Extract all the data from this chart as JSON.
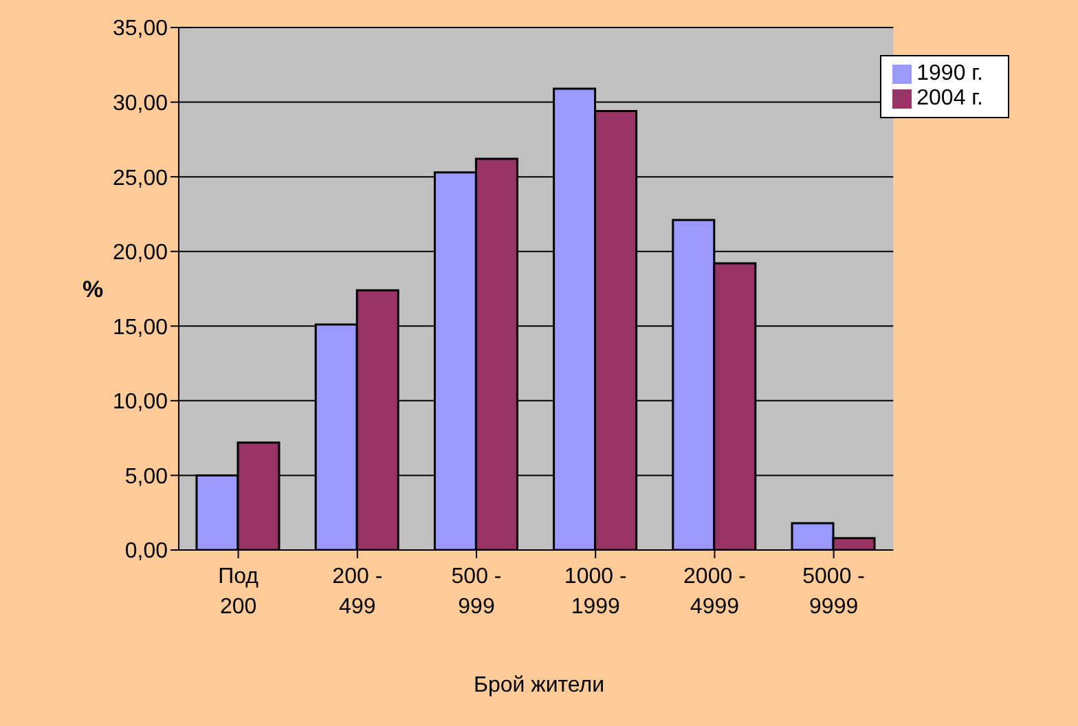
{
  "chart_data": {
    "type": "bar",
    "xlabel": "Брой жители",
    "ylabel": "%",
    "categories": [
      "Под 200",
      "200 - 499",
      "500 - 999",
      "1000 - 1999",
      "2000 - 4999",
      "5000 - 9999"
    ],
    "series": [
      {
        "name": "1990 г.",
        "color": "#9999ff",
        "values": [
          5.0,
          15.1,
          25.3,
          30.9,
          22.1,
          1.8
        ]
      },
      {
        "name": "2004 г.",
        "color": "#993366",
        "values": [
          7.2,
          17.4,
          26.2,
          29.4,
          19.2,
          0.8
        ]
      }
    ],
    "ylim": [
      0,
      35
    ],
    "yticks": [
      {
        "value": 0,
        "label": "0,00"
      },
      {
        "value": 5,
        "label": "5,00"
      },
      {
        "value": 10,
        "label": "10,00"
      },
      {
        "value": 15,
        "label": "15,00"
      },
      {
        "value": 20,
        "label": "20,00"
      },
      {
        "value": 25,
        "label": "25,00"
      },
      {
        "value": 30,
        "label": "30,00"
      },
      {
        "value": 35,
        "label": "35,00"
      }
    ],
    "grid": "y",
    "legend": "top right"
  }
}
